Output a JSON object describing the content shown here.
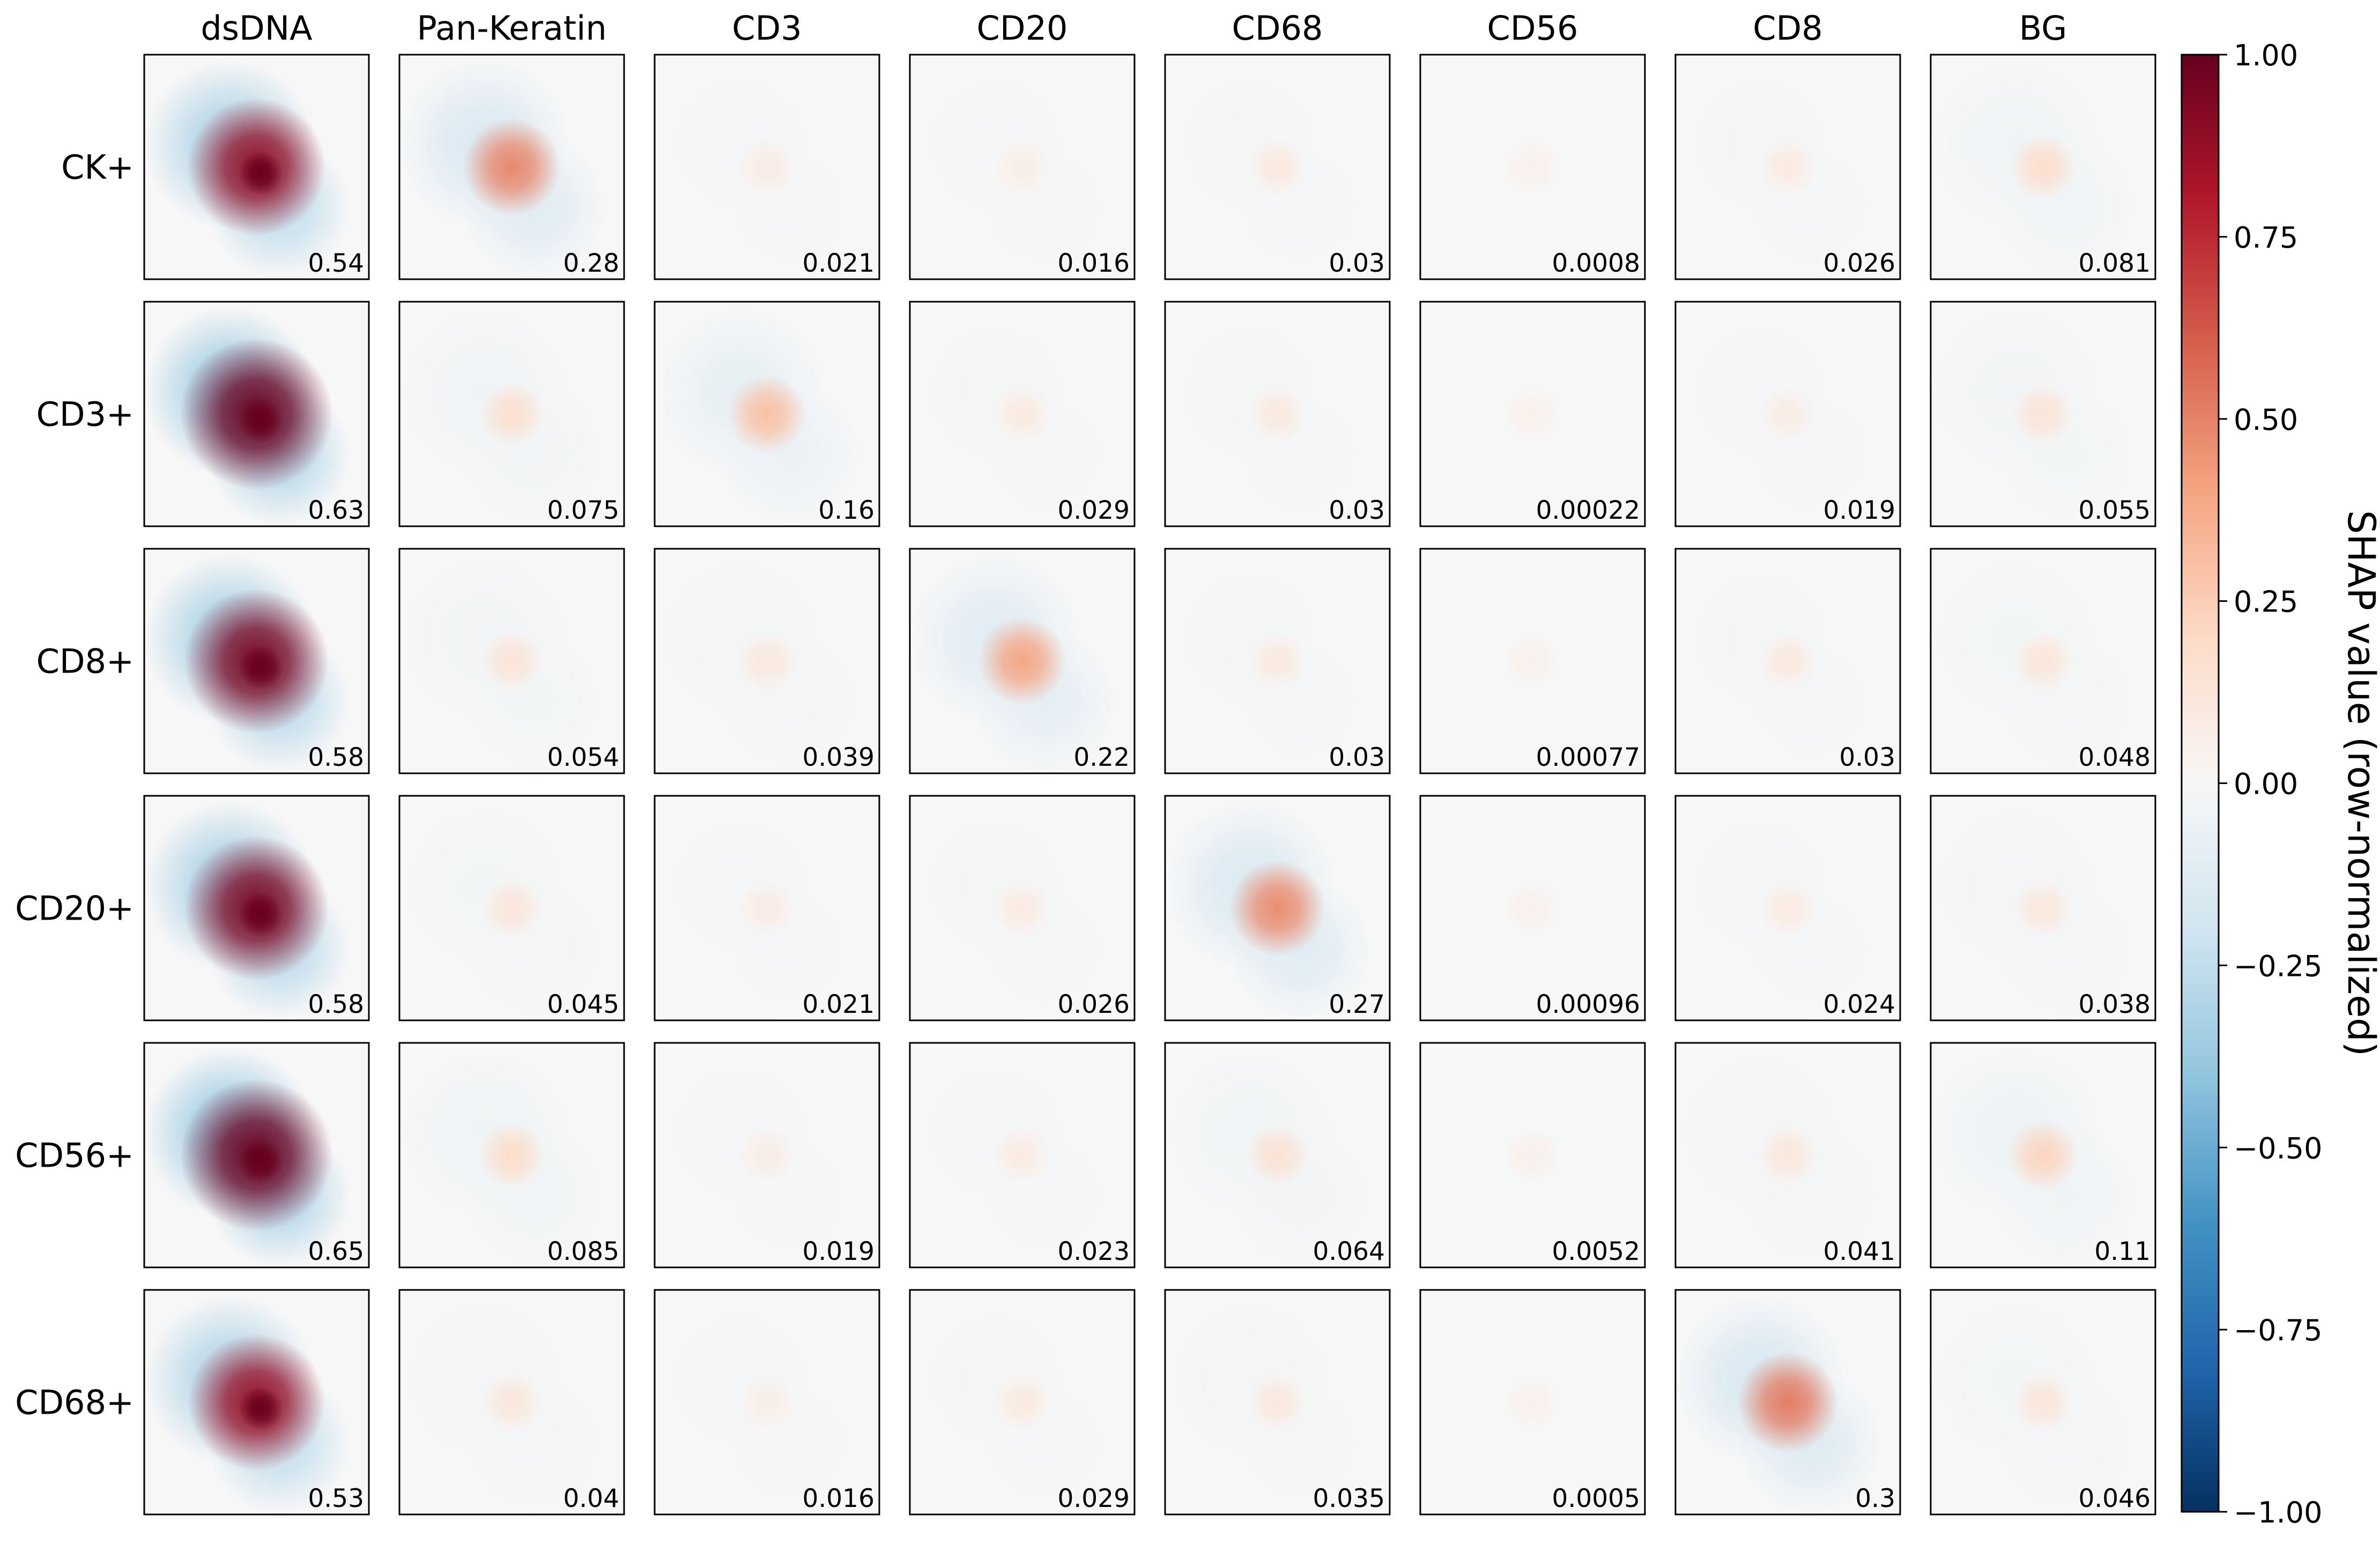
{
  "chart_data": {
    "type": "heatmap",
    "title": "",
    "columns": [
      "dsDNA",
      "Pan-Keratin",
      "CD3",
      "CD20",
      "CD68",
      "CD56",
      "CD8",
      "BG"
    ],
    "rows": [
      "CK+",
      "CD3+",
      "CD8+",
      "CD20+",
      "CD56+",
      "CD68+"
    ],
    "panel_values": [
      [
        "0.54",
        "0.28",
        "0.021",
        "0.016",
        "0.03",
        "0.0008",
        "0.026",
        "0.081"
      ],
      [
        "0.63",
        "0.075",
        "0.16",
        "0.029",
        "0.03",
        "0.00022",
        "0.019",
        "0.055"
      ],
      [
        "0.58",
        "0.054",
        "0.039",
        "0.22",
        "0.03",
        "0.00077",
        "0.03",
        "0.048"
      ],
      [
        "0.58",
        "0.045",
        "0.021",
        "0.026",
        "0.27",
        "0.00096",
        "0.024",
        "0.038"
      ],
      [
        "0.65",
        "0.085",
        "0.019",
        "0.023",
        "0.064",
        "0.0052",
        "0.041",
        "0.11"
      ],
      [
        "0.53",
        "0.04",
        "0.016",
        "0.029",
        "0.035",
        "0.0005",
        "0.3",
        "0.046"
      ]
    ],
    "colorbar": {
      "label": "SHAP value (row-normalized)",
      "range": [
        -1.0,
        1.0
      ],
      "ticks": [
        "1.00",
        "0.75",
        "0.50",
        "0.25",
        "0.00",
        "−0.25",
        "−0.50",
        "−0.75",
        "−1.00"
      ],
      "tick_values": [
        1.0,
        0.75,
        0.5,
        0.25,
        0.0,
        -0.25,
        -0.5,
        -0.75,
        -1.0
      ],
      "colormap": "RdBu_r",
      "colormap_stops": [
        "#053061",
        "#2166ac",
        "#4393c3",
        "#92c5de",
        "#d1e5f0",
        "#f7f7f7",
        "#fddbc7",
        "#f4a582",
        "#d6604d",
        "#b2182b",
        "#67001f"
      ]
    }
  }
}
